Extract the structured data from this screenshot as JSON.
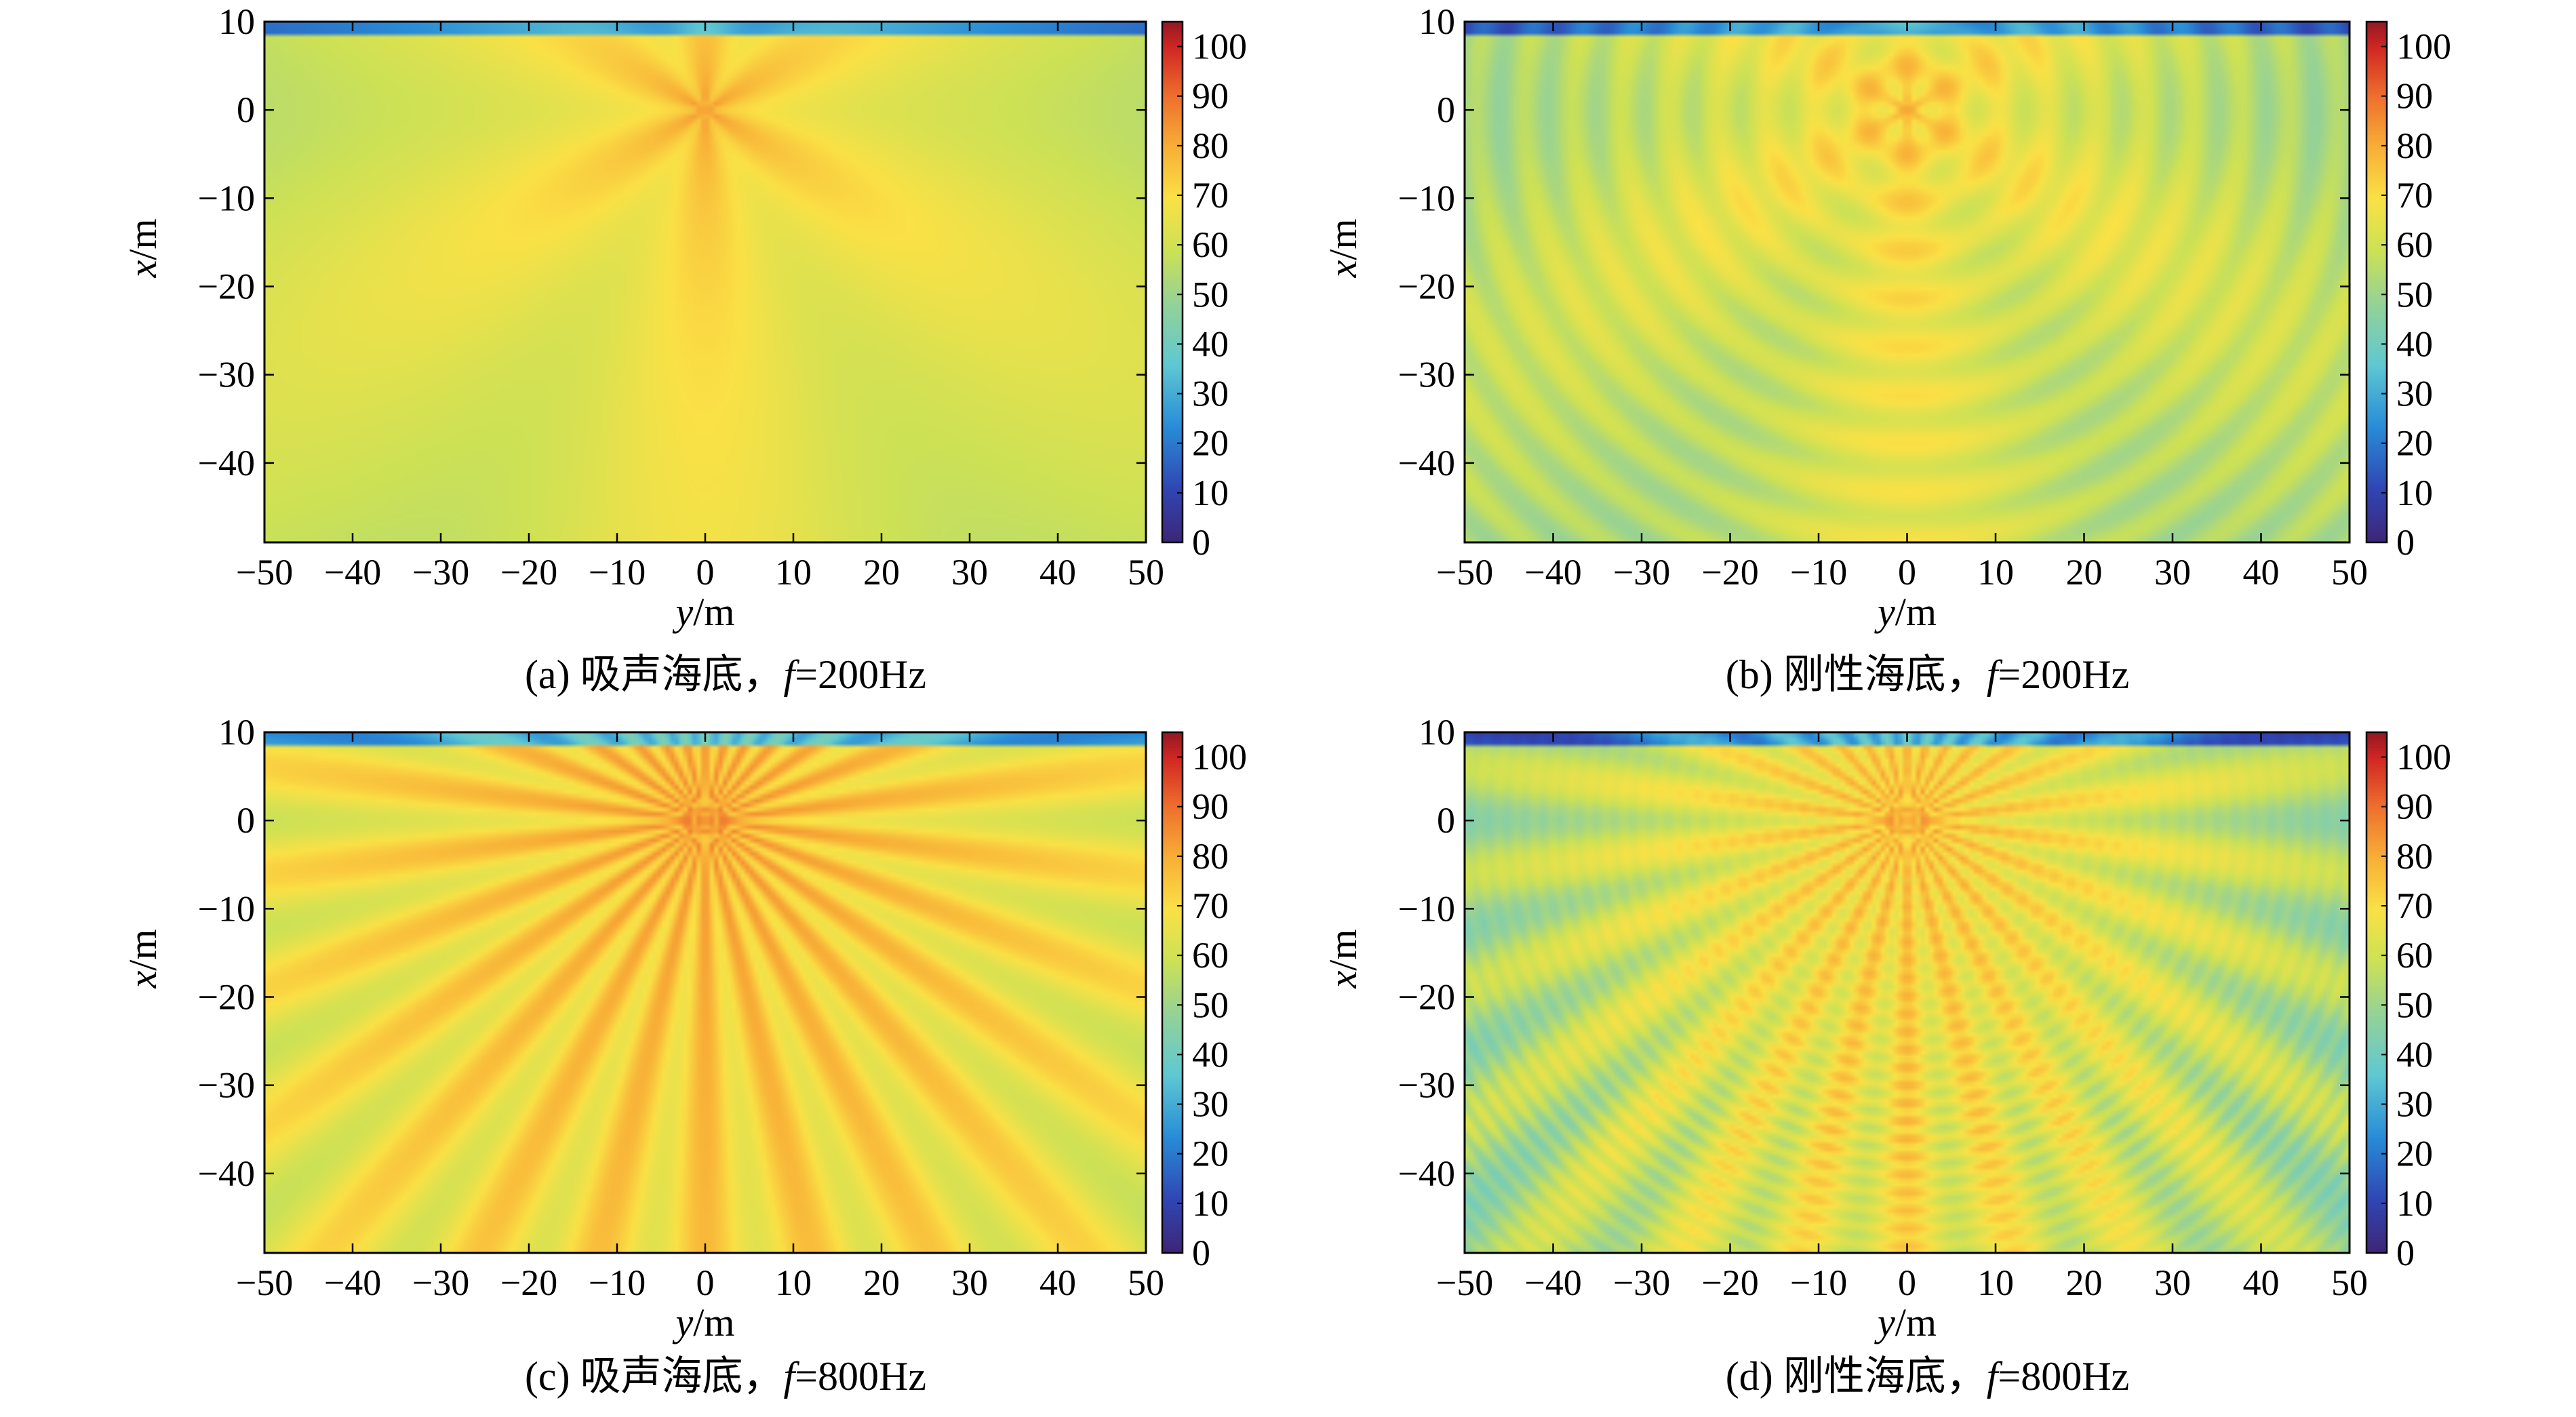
{
  "chart_data": [
    {
      "type": "heatmap",
      "caption": "(a) 吸声海底，f=200Hz",
      "caption_prefix": "(a) 吸声海底，",
      "caption_f": "f",
      "caption_value": "=200Hz",
      "xlabel_var": "y",
      "xlabel_unit": "/m",
      "ylabel_var": "x",
      "ylabel_unit": "/m",
      "xlim": [
        -50,
        50
      ],
      "ylim": [
        -49,
        10
      ],
      "xticks": [
        -50,
        -40,
        -30,
        -20,
        -10,
        0,
        10,
        20,
        30,
        40,
        50
      ],
      "xtick_labels": [
        "−50",
        "−40",
        "−30",
        "−20",
        "−10",
        "0",
        "10",
        "20",
        "30",
        "40",
        "50"
      ],
      "yticks": [
        10,
        0,
        -10,
        -20,
        -30,
        -40
      ],
      "ytick_labels": [
        "10",
        "0",
        "−10",
        "−20",
        "−30",
        "−40"
      ],
      "colorbar": {
        "range": [
          0,
          105
        ],
        "ticks": [
          0,
          10,
          20,
          30,
          40,
          50,
          60,
          70,
          80,
          90,
          100
        ],
        "tick_labels": [
          "0",
          "10",
          "20",
          "30",
          "40",
          "50",
          "60",
          "70",
          "80",
          "90",
          "100"
        ]
      },
      "field": {
        "freq_hz": 200,
        "bottom": "absorbing",
        "source_x": 0,
        "source_y": 0
      }
    },
    {
      "type": "heatmap",
      "caption": "(b) 刚性海底，f=200Hz",
      "caption_prefix": "(b) 刚性海底，",
      "caption_f": "f",
      "caption_value": "=200Hz",
      "xlabel_var": "y",
      "xlabel_unit": "/m",
      "ylabel_var": "x",
      "ylabel_unit": "/m",
      "xlim": [
        -50,
        50
      ],
      "ylim": [
        -49,
        10
      ],
      "xticks": [
        -50,
        -40,
        -30,
        -20,
        -10,
        0,
        10,
        20,
        30,
        40,
        50
      ],
      "xtick_labels": [
        "−50",
        "−40",
        "−30",
        "−20",
        "−10",
        "0",
        "10",
        "20",
        "30",
        "40",
        "50"
      ],
      "yticks": [
        10,
        0,
        -10,
        -20,
        -30,
        -40
      ],
      "ytick_labels": [
        "10",
        "0",
        "−10",
        "−20",
        "−30",
        "−40"
      ],
      "colorbar": {
        "range": [
          0,
          105
        ],
        "ticks": [
          0,
          10,
          20,
          30,
          40,
          50,
          60,
          70,
          80,
          90,
          100
        ],
        "tick_labels": [
          "0",
          "10",
          "20",
          "30",
          "40",
          "50",
          "60",
          "70",
          "80",
          "90",
          "100"
        ]
      },
      "field": {
        "freq_hz": 200,
        "bottom": "rigid",
        "source_x": 0,
        "source_y": 0
      }
    },
    {
      "type": "heatmap",
      "caption": "(c) 吸声海底，f=800Hz",
      "caption_prefix": "(c) 吸声海底，",
      "caption_f": "f",
      "caption_value": "=800Hz",
      "xlabel_var": "y",
      "xlabel_unit": "/m",
      "ylabel_var": "x",
      "ylabel_unit": "/m",
      "xlim": [
        -50,
        50
      ],
      "ylim": [
        -49,
        10
      ],
      "xticks": [
        -50,
        -40,
        -30,
        -20,
        -10,
        0,
        10,
        20,
        30,
        40,
        50
      ],
      "xtick_labels": [
        "−50",
        "−40",
        "−30",
        "−20",
        "−10",
        "0",
        "10",
        "20",
        "30",
        "40",
        "50"
      ],
      "yticks": [
        10,
        0,
        -10,
        -20,
        -30,
        -40
      ],
      "ytick_labels": [
        "10",
        "0",
        "−10",
        "−20",
        "−30",
        "−40"
      ],
      "colorbar": {
        "range": [
          0,
          105
        ],
        "ticks": [
          0,
          10,
          20,
          30,
          40,
          50,
          60,
          70,
          80,
          90,
          100
        ],
        "tick_labels": [
          "0",
          "10",
          "20",
          "30",
          "40",
          "50",
          "60",
          "70",
          "80",
          "90",
          "100"
        ]
      },
      "field": {
        "freq_hz": 800,
        "bottom": "absorbing",
        "source_x": 0,
        "source_y": 0
      }
    },
    {
      "type": "heatmap",
      "caption": "(d) 刚性海底，f=800Hz",
      "caption_prefix": "(d) 刚性海底，",
      "caption_f": "f",
      "caption_value": "=800Hz",
      "xlabel_var": "y",
      "xlabel_unit": "/m",
      "ylabel_var": "x",
      "ylabel_unit": "/m",
      "xlim": [
        -50,
        50
      ],
      "ylim": [
        -49,
        10
      ],
      "xticks": [
        -50,
        -40,
        -30,
        -20,
        -10,
        0,
        10,
        20,
        30,
        40,
        50
      ],
      "xtick_labels": [
        "−50",
        "−40",
        "−30",
        "−20",
        "−10",
        "0",
        "10",
        "20",
        "30",
        "40",
        "50"
      ],
      "yticks": [
        10,
        0,
        -10,
        -20,
        -30,
        -40
      ],
      "ytick_labels": [
        "10",
        "0",
        "−10",
        "−20",
        "−30",
        "−40"
      ],
      "colorbar": {
        "range": [
          0,
          105
        ],
        "ticks": [
          0,
          10,
          20,
          30,
          40,
          50,
          60,
          70,
          80,
          90,
          100
        ],
        "tick_labels": [
          "0",
          "10",
          "20",
          "30",
          "40",
          "50",
          "60",
          "70",
          "80",
          "90",
          "100"
        ]
      },
      "field": {
        "freq_hz": 800,
        "bottom": "rigid",
        "source_x": 0,
        "source_y": 0
      }
    }
  ]
}
